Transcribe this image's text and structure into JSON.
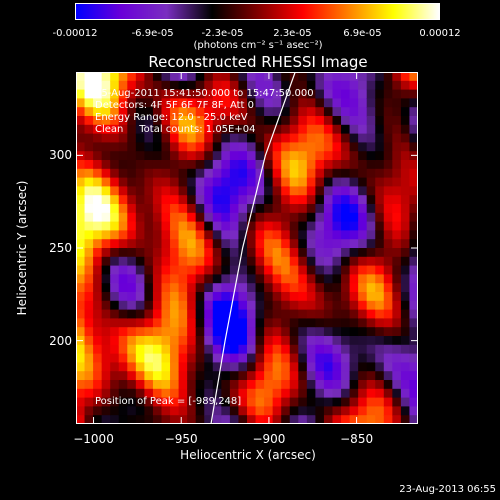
{
  "colorbar": {
    "ticks": [
      "-0.00012",
      "-6.9e-05",
      "-2.3e-05",
      "2.3e-05",
      "6.9e-05",
      "0.00012"
    ],
    "tick_values": [
      -0.00012,
      -6.9e-05,
      -2.3e-05,
      2.3e-05,
      6.9e-05,
      0.00012
    ],
    "range": [
      -0.00012,
      0.00012
    ],
    "units": "(photons cm⁻² s⁻¹ asec⁻²)",
    "colormap": [
      "#0000ff",
      "#6a00d8",
      "#7a2ec0",
      "#000000",
      "#800000",
      "#ff0000",
      "#ff8000",
      "#ffff00",
      "#ffffff"
    ]
  },
  "info": {
    "time_range": "15-Aug-2011 15:41:50.000 to 15:47:50.000",
    "detectors": "Detectors: 4F 5F 6F 7F 8F, Att 0",
    "energy": "Energy Range: 12.0 - 25.0 keV",
    "clean": "Clean     Total counts: 1.05E+04"
  },
  "peak": "Position of Peak = [-989,248]",
  "footer": "23-Aug-2013 06:55",
  "chart_data": {
    "type": "heatmap",
    "title": "Reconstructed RHESSI Image",
    "xlabel": "Heliocentric X (arcsec)",
    "ylabel": "Heliocentric Y (arcsec)",
    "xlim": [
      -1010,
      -815
    ],
    "ylim": [
      155,
      345
    ],
    "xticks": [
      -1000,
      -950,
      -900,
      -850
    ],
    "yticks": [
      200,
      250,
      300
    ],
    "xtick_labels": [
      "−1000",
      "−950",
      "−900",
      "−850"
    ],
    "ytick_labels": [
      "200",
      "250",
      "300"
    ],
    "peak_position": [
      -989,
      248
    ],
    "limb_curve": [
      [
        -933,
        155
      ],
      [
        -925,
        200
      ],
      [
        -915,
        250
      ],
      [
        -902,
        300
      ],
      [
        -885,
        345
      ]
    ],
    "grid": false,
    "legend": "none"
  }
}
